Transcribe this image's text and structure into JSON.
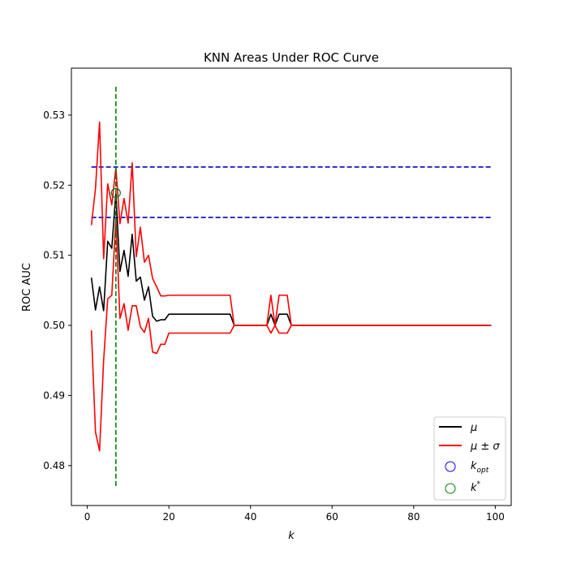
{
  "chart_data": {
    "type": "line",
    "title": "KNN Areas Under ROC Curve",
    "xlabel": "k",
    "ylabel": "ROC AUC",
    "xlim": [
      -3.9,
      103.9
    ],
    "ylim": [
      0.4743,
      0.5367
    ],
    "xticks": [
      0,
      20,
      40,
      60,
      80,
      100
    ],
    "yticks": [
      0.48,
      0.49,
      0.5,
      0.51,
      0.52,
      0.53
    ],
    "ytick_labels": [
      "0.48",
      "0.49",
      "0.50",
      "0.51",
      "0.52",
      "0.53"
    ],
    "grid": false,
    "legend_placement": "lower-right",
    "legend": {
      "mu": "μ",
      "mu_sigma": "μ ± σ",
      "k_opt_base": "k",
      "k_opt_sub": "opt",
      "k_star_base": "k",
      "k_star_sup": "*"
    },
    "colors": {
      "mean": "#000000",
      "band": "#ff0000",
      "hlines": "#0000cc",
      "vline": "#008000",
      "k_opt_marker": "#0000ff",
      "k_star_marker": "#008000"
    },
    "series": [
      {
        "name": "μ",
        "x": [
          1,
          2,
          3,
          4,
          5,
          6,
          7,
          8,
          9,
          10,
          11,
          12,
          13,
          14,
          15,
          16,
          17,
          18,
          19,
          20,
          21,
          22,
          23,
          24,
          25,
          26,
          27,
          28,
          29,
          30,
          31,
          32,
          33,
          34,
          35,
          36,
          37,
          38,
          39,
          40,
          41,
          42,
          43,
          44,
          45,
          46,
          47,
          48,
          49,
          50,
          99
        ],
        "values": [
          0.5068,
          0.5022,
          0.5055,
          0.5021,
          0.512,
          0.511,
          0.5189,
          0.5077,
          0.5107,
          0.507,
          0.513,
          0.5063,
          0.5069,
          0.5036,
          0.5055,
          0.5013,
          0.5006,
          0.5008,
          0.5008,
          0.5016,
          0.5016,
          0.5016,
          0.5016,
          0.5016,
          0.5016,
          0.5016,
          0.5016,
          0.5016,
          0.5016,
          0.5016,
          0.5016,
          0.5016,
          0.5016,
          0.5016,
          0.5016,
          0.5,
          0.5,
          0.5,
          0.5,
          0.5,
          0.5,
          0.5,
          0.5,
          0.5,
          0.5016,
          0.5,
          0.5016,
          0.5016,
          0.5016,
          0.5,
          0.5
        ]
      },
      {
        "name": "μ + σ",
        "x": [
          1,
          2,
          3,
          4,
          5,
          6,
          7,
          8,
          9,
          10,
          11,
          12,
          13,
          14,
          15,
          16,
          17,
          18,
          19,
          20,
          21,
          22,
          23,
          24,
          25,
          26,
          27,
          28,
          29,
          30,
          31,
          32,
          33,
          34,
          35,
          36,
          37,
          38,
          39,
          40,
          41,
          42,
          43,
          44,
          45,
          46,
          47,
          48,
          49,
          50,
          99
        ],
        "values": [
          0.5143,
          0.5195,
          0.529,
          0.5095,
          0.5202,
          0.5172,
          0.5225,
          0.5145,
          0.5181,
          0.5146,
          0.5232,
          0.5098,
          0.514,
          0.509,
          0.51,
          0.5067,
          0.5055,
          0.5042,
          0.5042,
          0.5043,
          0.5043,
          0.5043,
          0.5043,
          0.5043,
          0.5043,
          0.5043,
          0.5043,
          0.5043,
          0.5043,
          0.5043,
          0.5043,
          0.5043,
          0.5043,
          0.5043,
          0.5043,
          0.5,
          0.5,
          0.5,
          0.5,
          0.5,
          0.5,
          0.5,
          0.5,
          0.5,
          0.5043,
          0.5,
          0.5043,
          0.5043,
          0.5043,
          0.5,
          0.5
        ]
      },
      {
        "name": "μ − σ",
        "x": [
          1,
          2,
          3,
          4,
          5,
          6,
          7,
          8,
          9,
          10,
          11,
          12,
          13,
          14,
          15,
          16,
          17,
          18,
          19,
          20,
          21,
          22,
          23,
          24,
          25,
          26,
          27,
          28,
          29,
          30,
          31,
          32,
          33,
          34,
          35,
          36,
          37,
          38,
          39,
          40,
          41,
          42,
          43,
          44,
          45,
          46,
          47,
          48,
          49,
          50,
          99
        ],
        "values": [
          0.4993,
          0.4848,
          0.4821,
          0.495,
          0.5038,
          0.5043,
          0.5152,
          0.501,
          0.5031,
          0.4993,
          0.5028,
          0.5028,
          0.4998,
          0.499,
          0.501,
          0.4962,
          0.496,
          0.4973,
          0.4973,
          0.4989,
          0.4989,
          0.4989,
          0.4989,
          0.4989,
          0.4989,
          0.4989,
          0.4989,
          0.4989,
          0.4989,
          0.4989,
          0.4989,
          0.4989,
          0.4989,
          0.4989,
          0.4989,
          0.5,
          0.5,
          0.5,
          0.5,
          0.5,
          0.5,
          0.5,
          0.5,
          0.5,
          0.4989,
          0.5,
          0.4989,
          0.4989,
          0.4989,
          0.5,
          0.5
        ]
      }
    ],
    "hlines": [
      {
        "y": 0.5226,
        "x_range": [
          1,
          99
        ]
      },
      {
        "y": 0.5154,
        "x_range": [
          1,
          99
        ]
      }
    ],
    "vline": {
      "x": 7,
      "y_range": [
        0.4771,
        0.5341
      ]
    },
    "markers": {
      "k_opt": {
        "x": 7,
        "y": 0.5189
      },
      "k_star": {
        "x": 7,
        "y": 0.5189
      }
    }
  }
}
